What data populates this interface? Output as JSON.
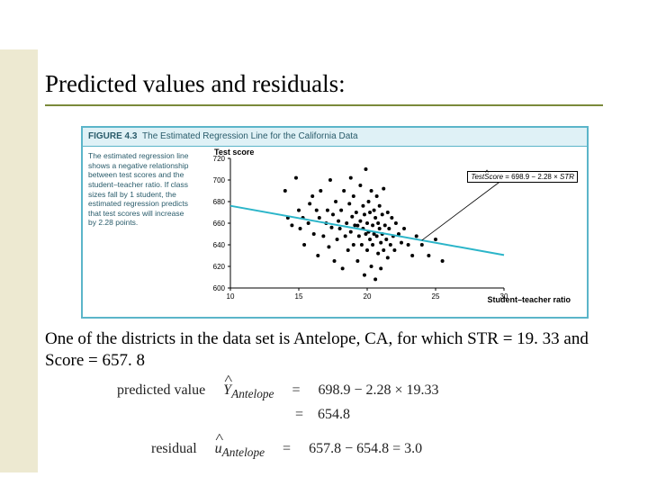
{
  "title": "Predicted values and residuals:",
  "figure": {
    "header_label": "FIGURE 4.3",
    "header_text": "The Estimated Regression Line for the California Data",
    "sidetext": "The estimated regression line shows a negative relationship between test scores and the student–teacher ratio. If class sizes fall by 1 student, the estimated regression predicts that test scores will increase by 2.28 points.",
    "chart": {
      "type": "scatter",
      "ylabel": "Test score",
      "xlabel": "Student–teacher ratio",
      "xlim": [
        10,
        30
      ],
      "ylim": [
        600,
        720
      ],
      "xticks": [
        10,
        15,
        20,
        25,
        30
      ],
      "yticks": [
        600,
        620,
        640,
        660,
        680,
        700,
        720
      ],
      "line_intercept": 698.9,
      "line_slope": -2.28,
      "line_color": "#2bb5c9",
      "line_width": 2,
      "marker_color": "#000000",
      "marker_size": 2,
      "background": "#ffffff",
      "callout_text": "TestScore = 698.9 − 2.28 × STR",
      "points": [
        [
          14.0,
          690
        ],
        [
          14.2,
          665
        ],
        [
          14.5,
          658
        ],
        [
          14.8,
          702
        ],
        [
          15.0,
          672
        ],
        [
          15.1,
          655
        ],
        [
          15.3,
          665
        ],
        [
          15.4,
          640
        ],
        [
          15.7,
          660
        ],
        [
          15.8,
          678
        ],
        [
          16.0,
          685
        ],
        [
          16.1,
          650
        ],
        [
          16.3,
          672
        ],
        [
          16.4,
          630
        ],
        [
          16.5,
          665
        ],
        [
          16.6,
          690
        ],
        [
          16.8,
          648
        ],
        [
          17.0,
          660
        ],
        [
          17.1,
          672
        ],
        [
          17.2,
          638
        ],
        [
          17.3,
          700
        ],
        [
          17.4,
          656
        ],
        [
          17.5,
          668
        ],
        [
          17.6,
          625
        ],
        [
          17.7,
          680
        ],
        [
          17.8,
          645
        ],
        [
          17.9,
          662
        ],
        [
          18.0,
          655
        ],
        [
          18.1,
          672
        ],
        [
          18.2,
          618
        ],
        [
          18.3,
          690
        ],
        [
          18.4,
          648
        ],
        [
          18.5,
          660
        ],
        [
          18.6,
          635
        ],
        [
          18.7,
          678
        ],
        [
          18.8,
          652
        ],
        [
          18.8,
          702
        ],
        [
          18.9,
          666
        ],
        [
          19.0,
          640
        ],
        [
          19.0,
          685
        ],
        [
          19.1,
          658
        ],
        [
          19.2,
          670
        ],
        [
          19.3,
          625
        ],
        [
          19.3,
          657.8
        ],
        [
          19.4,
          648
        ],
        [
          19.5,
          695
        ],
        [
          19.5,
          662
        ],
        [
          19.6,
          640
        ],
        [
          19.7,
          676
        ],
        [
          19.7,
          655
        ],
        [
          19.8,
          612
        ],
        [
          19.8,
          668
        ],
        [
          19.9,
          650
        ],
        [
          19.9,
          710
        ],
        [
          20.0,
          660
        ],
        [
          20.0,
          635
        ],
        [
          20.1,
          680
        ],
        [
          20.1,
          652
        ],
        [
          20.2,
          645
        ],
        [
          20.2,
          670
        ],
        [
          20.3,
          620
        ],
        [
          20.3,
          690
        ],
        [
          20.4,
          658
        ],
        [
          20.4,
          640
        ],
        [
          20.5,
          672
        ],
        [
          20.5,
          650
        ],
        [
          20.6,
          608
        ],
        [
          20.6,
          665
        ],
        [
          20.7,
          648
        ],
        [
          20.7,
          685
        ],
        [
          20.8,
          632
        ],
        [
          20.8,
          660
        ],
        [
          20.9,
          655
        ],
        [
          20.9,
          676
        ],
        [
          21.0,
          642
        ],
        [
          21.0,
          618
        ],
        [
          21.1,
          668
        ],
        [
          21.1,
          650
        ],
        [
          21.2,
          635
        ],
        [
          21.2,
          692
        ],
        [
          21.3,
          658
        ],
        [
          21.4,
          645
        ],
        [
          21.5,
          670
        ],
        [
          21.5,
          628
        ],
        [
          21.6,
          655
        ],
        [
          21.7,
          640
        ],
        [
          21.8,
          665
        ],
        [
          21.9,
          648
        ],
        [
          22.0,
          635
        ],
        [
          22.1,
          660
        ],
        [
          22.3,
          650
        ],
        [
          22.5,
          642
        ],
        [
          22.7,
          655
        ],
        [
          23.0,
          640
        ],
        [
          23.3,
          630
        ],
        [
          23.6,
          648
        ],
        [
          24.0,
          640
        ],
        [
          24.5,
          630
        ],
        [
          25.0,
          645
        ],
        [
          25.5,
          625
        ]
      ]
    }
  },
  "paragraph": "One of the districts in the data set is Antelope, CA, for which STR = 19. 33 and Score = 657. 8",
  "equations": {
    "predicted_label": "predicted value",
    "predicted_symbol_sub": "Antelope",
    "predicted_rhs1": "698.9 − 2.28 × 19.33",
    "predicted_rhs2": "654.8",
    "residual_label": "residual",
    "residual_symbol_sub": "Antelope",
    "residual_rhs": "657.8 − 654.8 = 3.0"
  }
}
